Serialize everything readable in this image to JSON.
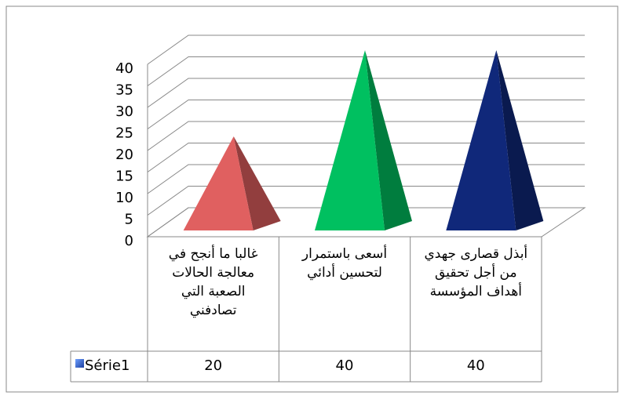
{
  "chart_data": {
    "type": "pyramid3d",
    "categories": [
      "غالبا ما أنجح في معالجة الحالات الصعبة التي تصادفني",
      "أسعى باستمرار لتحسين أدائي",
      "أبذل قصارى جهدي من أجل تحقيق أهداف المؤسسة"
    ],
    "series": [
      {
        "name": "Série1",
        "colors": [
          "#e06060",
          "#00c060",
          "#10287a"
        ],
        "values": [
          20,
          40,
          40
        ]
      }
    ],
    "ylim": [
      0,
      40
    ],
    "yticks": [
      0,
      5,
      10,
      15,
      20,
      25,
      30,
      35,
      40
    ],
    "grid": true,
    "data_table": true
  }
}
